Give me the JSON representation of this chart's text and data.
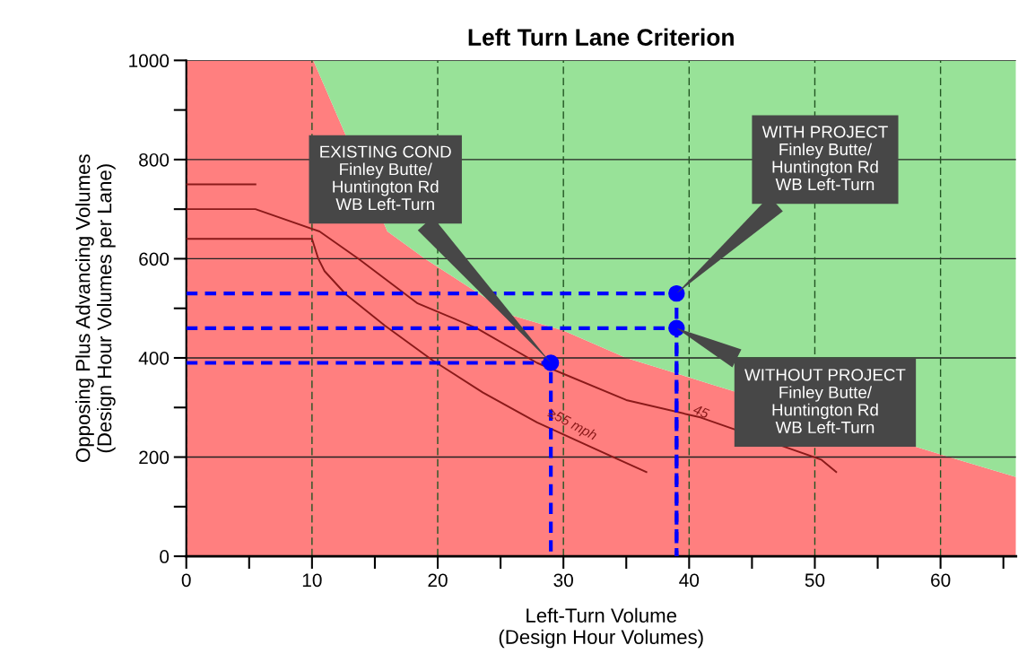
{
  "chart_data": {
    "type": "line",
    "title": "Left Turn Lane Criterion",
    "xlabel": "Left-Turn Volume\n(Design Hour Volumes)",
    "ylabel": "Opposing Plus Advancing Volumes\n(Design Hour Volumes per Lane)",
    "xlim": [
      0,
      66
    ],
    "ylim": [
      0,
      1000
    ],
    "xticks": [
      0,
      {
        "value": 5,
        "label": null
      },
      10,
      {
        "value": 15,
        "label": null
      },
      20,
      {
        "value": 25,
        "label": null
      },
      30,
      {
        "value": 35,
        "label": null
      },
      40,
      {
        "value": 45,
        "label": null
      },
      50,
      {
        "value": 55,
        "label": null
      },
      60,
      {
        "value": 65,
        "label": null
      }
    ],
    "yticks": [
      0,
      {
        "value": 100,
        "label": null
      },
      200,
      {
        "value": 300,
        "label": null
      },
      400,
      {
        "value": 500,
        "label": null
      },
      600,
      {
        "value": 700,
        "label": null
      },
      800,
      {
        "value": 900,
        "label": null
      },
      1000
    ],
    "grid": true,
    "stacked": true,
    "series": [
      {
        "type": "area",
        "color": "#ff7f7f",
        "x": [
          0,
          10.1,
          16,
          19,
          26,
          30,
          35,
          42,
          62,
          66
        ],
        "values": [
          1000,
          1000,
          655,
          600,
          485,
          455,
          400,
          345,
          190,
          160
        ]
      },
      {
        "type": "area",
        "color": "#98e298",
        "x": [
          0,
          10.1,
          16,
          19,
          26,
          30,
          35,
          42,
          62,
          66
        ],
        "values": [
          0,
          0,
          345,
          400,
          515,
          545,
          600,
          655,
          810,
          840
        ]
      },
      {
        "color": "#8b1a1a",
        "x": [
          0,
          10,
          10.5,
          11,
          12.7,
          15.8,
          19.6,
          23.6,
          27.9,
          32.2,
          36.6
        ],
        "values": [
          640,
          640,
          600,
          575,
          528,
          465,
          395,
          330,
          270,
          220,
          170
        ]
      },
      {
        "color": "#8b1a1a",
        "x": [
          0,
          5.5,
          10.6,
          13.7,
          18.4,
          23.1,
          27.9,
          35,
          40.9,
          50.5,
          51.7
        ],
        "values": [
          700,
          700,
          655,
          600,
          510,
          460,
          390,
          315,
          280,
          195,
          170
        ]
      },
      {
        "color": "#8b1a1a",
        "x": [
          0,
          5.5
        ],
        "values": [
          750,
          750
        ]
      },
      {
        "type": "line",
        "color": "#0000ff",
        "line_style": "dashed",
        "x": [
          0,
          29,
          29
        ],
        "values": [
          390,
          390,
          0
        ]
      },
      {
        "type": "line",
        "color": "#0000ff",
        "line_style": "dashed",
        "x": [
          0,
          39,
          39
        ],
        "values": [
          460,
          460,
          0
        ]
      },
      {
        "type": "line",
        "color": "#0000ff",
        "line_style": "dashed",
        "x": [
          0,
          39,
          39
        ],
        "values": [
          530,
          530,
          0
        ]
      },
      {
        "type": "scatter",
        "color": "#0000ff",
        "marker": "circle",
        "x": [
          29,
          39,
          39
        ],
        "values": [
          390,
          460,
          530
        ]
      }
    ],
    "annotations": [
      "EXISTING COND\nFinley Butte/\nHuntington Rd\nWB Left-Turn",
      "WITH PROJECT\nFinley Butte/\nHuntington Rd\nWB Left-Turn",
      "WITHOUT PROJECT\nFinley Butte/\nHuntington Rd\nWB Left-Turn",
      "≥55 mph",
      "45"
    ]
  }
}
